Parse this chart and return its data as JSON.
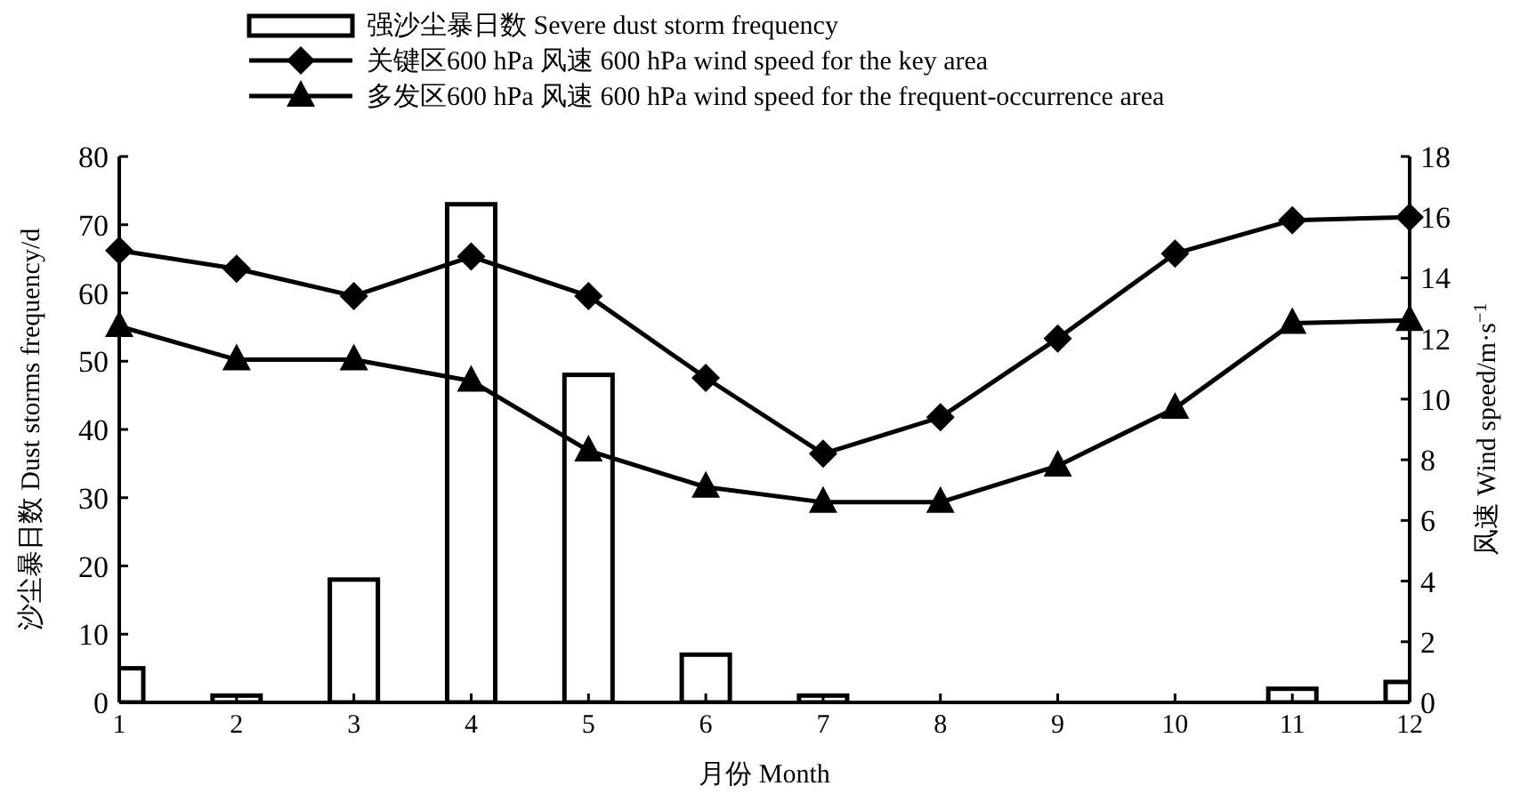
{
  "chart_data": {
    "type": "bar",
    "x": [
      1,
      2,
      3,
      4,
      5,
      6,
      7,
      8,
      9,
      10,
      11,
      12
    ],
    "xlim": [
      1,
      12
    ],
    "xticks": [
      1,
      2,
      3,
      4,
      5,
      6,
      7,
      8,
      9,
      10,
      11,
      12
    ],
    "xlabel": "月份  Month",
    "ylabel": "沙尘暴日数  Dust storms frequency/d",
    "y2label": "风速  Wind speed/m·s$^{−1}$",
    "ylim": [
      0,
      80
    ],
    "yticks": [
      0,
      10,
      20,
      30,
      40,
      50,
      60,
      70,
      80
    ],
    "y2lim": [
      0,
      18
    ],
    "y2ticks": [
      0,
      2,
      4,
      6,
      8,
      10,
      12,
      14,
      16,
      18
    ],
    "legend": "top left",
    "grid": false,
    "series": [
      {
        "name": "强沙尘暴日数  Severe dust storm frequency",
        "color": "#ffffff",
        "values": [
          5,
          1,
          18,
          73,
          48,
          7,
          1,
          0,
          0,
          0,
          2,
          3
        ]
      },
      {
        "name": "关键区600 hPa 风速  600 hPa wind speed for the key area",
        "type": "line",
        "axis": "y2",
        "marker": "diamond",
        "color": "#000000",
        "values": [
          14.9,
          14.3,
          13.4,
          14.7,
          13.4,
          10.7,
          8.2,
          9.4,
          12.0,
          14.8,
          15.9,
          16.0
        ]
      },
      {
        "name": "多发区600 hPa 风速  600 hPa wind speed for the frequent-occurrence area",
        "type": "line",
        "axis": "y2",
        "marker": "triangle",
        "color": "#000000",
        "values": [
          12.4,
          11.3,
          11.3,
          10.6,
          8.3,
          7.1,
          6.6,
          6.6,
          7.8,
          9.7,
          12.5,
          12.6
        ]
      }
    ]
  }
}
